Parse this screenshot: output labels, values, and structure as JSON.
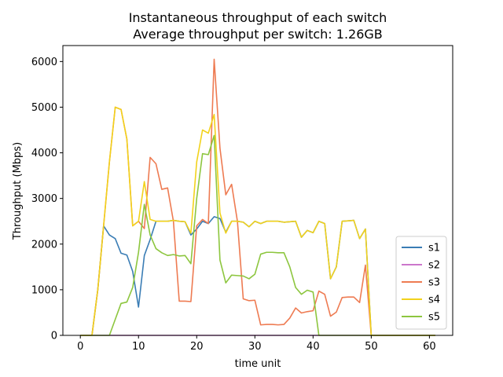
{
  "chart_data": {
    "type": "line",
    "title": "Instantaneous throughput of each switch",
    "subtitle": "Average throughput per switch: 1.26GB",
    "xlabel": "time unit",
    "ylabel": "Throughput (Mbps)",
    "xlim": [
      -3,
      64
    ],
    "ylim": [
      0,
      6350
    ],
    "xticks": [
      0,
      10,
      20,
      30,
      40,
      50,
      60
    ],
    "yticks": [
      0,
      1000,
      2000,
      3000,
      4000,
      5000,
      6000
    ],
    "grid": false,
    "legend_position": "lower-right",
    "x": [
      0,
      1,
      2,
      3,
      4,
      5,
      6,
      7,
      8,
      9,
      10,
      11,
      12,
      13,
      14,
      15,
      16,
      17,
      18,
      19,
      20,
      21,
      22,
      23,
      24,
      25,
      26,
      27,
      28,
      29,
      30,
      31,
      32,
      33,
      34,
      35,
      36,
      37,
      38,
      39,
      40,
      41,
      42,
      43,
      44,
      45,
      46,
      47,
      48,
      49,
      50,
      51,
      52,
      53,
      54,
      55,
      56,
      57,
      58,
      59,
      60,
      61
    ],
    "series": [
      {
        "name": "s1",
        "color": "#3a7db5",
        "values": [
          0,
          0,
          0,
          1000,
          2400,
          2200,
          2120,
          1800,
          1760,
          1400,
          620,
          1750,
          2100,
          2500,
          2500,
          2500,
          2520,
          2500,
          2490,
          2200,
          2330,
          2500,
          2450,
          2600,
          2560,
          2260,
          2500,
          2500,
          2480,
          2380,
          2500,
          2450,
          2500,
          2500,
          2500,
          2480,
          2490,
          2500,
          2150,
          2300,
          2250,
          2500,
          2450,
          1240,
          1500,
          2500,
          2510,
          2520,
          2120,
          2330,
          0,
          0,
          0,
          0,
          0,
          0,
          0,
          0,
          0,
          0,
          0,
          0
        ]
      },
      {
        "name": "s2",
        "color": "#cc77cc",
        "values": [
          0,
          0,
          0,
          0,
          0,
          0,
          0,
          0,
          0,
          0,
          0,
          0,
          0,
          0,
          0,
          0,
          0,
          0,
          0,
          0,
          0,
          0,
          0,
          0,
          0,
          0,
          0,
          0,
          0,
          0,
          0,
          0,
          0,
          0,
          0,
          0,
          0,
          0,
          0,
          0,
          0,
          0,
          0,
          0,
          0,
          0,
          0,
          0,
          0,
          0,
          0,
          0,
          0,
          0,
          0,
          0,
          0,
          0,
          0,
          0,
          0,
          0
        ]
      },
      {
        "name": "s3",
        "color": "#ee7b52",
        "values": [
          0,
          0,
          0,
          1000,
          2400,
          3800,
          5000,
          4950,
          4300,
          2400,
          2500,
          2340,
          3900,
          3760,
          3200,
          3230,
          2500,
          750,
          750,
          740,
          2400,
          2540,
          2450,
          6050,
          4100,
          3080,
          3310,
          2500,
          800,
          760,
          770,
          230,
          240,
          240,
          230,
          240,
          380,
          600,
          490,
          520,
          540,
          970,
          900,
          420,
          510,
          830,
          840,
          840,
          720,
          1540,
          0,
          0,
          0,
          0,
          0,
          0,
          0,
          0,
          0,
          0,
          0,
          0
        ]
      },
      {
        "name": "s4",
        "color": "#f2d21c",
        "values": [
          0,
          0,
          0,
          1000,
          2400,
          3800,
          5000,
          4950,
          4300,
          2400,
          2500,
          3370,
          2540,
          2500,
          2500,
          2500,
          2520,
          2500,
          2490,
          2240,
          3800,
          4500,
          4430,
          4840,
          2680,
          2240,
          2500,
          2500,
          2480,
          2380,
          2500,
          2450,
          2500,
          2500,
          2500,
          2480,
          2490,
          2500,
          2150,
          2300,
          2250,
          2500,
          2450,
          1240,
          1500,
          2500,
          2510,
          2520,
          2120,
          2330,
          0,
          0,
          0,
          0,
          0,
          0,
          0,
          0,
          0,
          0,
          0,
          0
        ]
      },
      {
        "name": "s5",
        "color": "#8dc63f",
        "values": [
          0,
          0,
          0,
          0,
          0,
          0,
          350,
          700,
          730,
          1050,
          1820,
          2870,
          2200,
          1900,
          1810,
          1750,
          1770,
          1740,
          1750,
          1570,
          3000,
          3980,
          3960,
          4380,
          1650,
          1150,
          1320,
          1310,
          1300,
          1240,
          1340,
          1780,
          1820,
          1820,
          1810,
          1810,
          1500,
          1050,
          900,
          990,
          950,
          0,
          0,
          0,
          0,
          0,
          0,
          0,
          0,
          0,
          0,
          0,
          0,
          0,
          0,
          0,
          0,
          0,
          0,
          0,
          0,
          0
        ]
      }
    ]
  }
}
